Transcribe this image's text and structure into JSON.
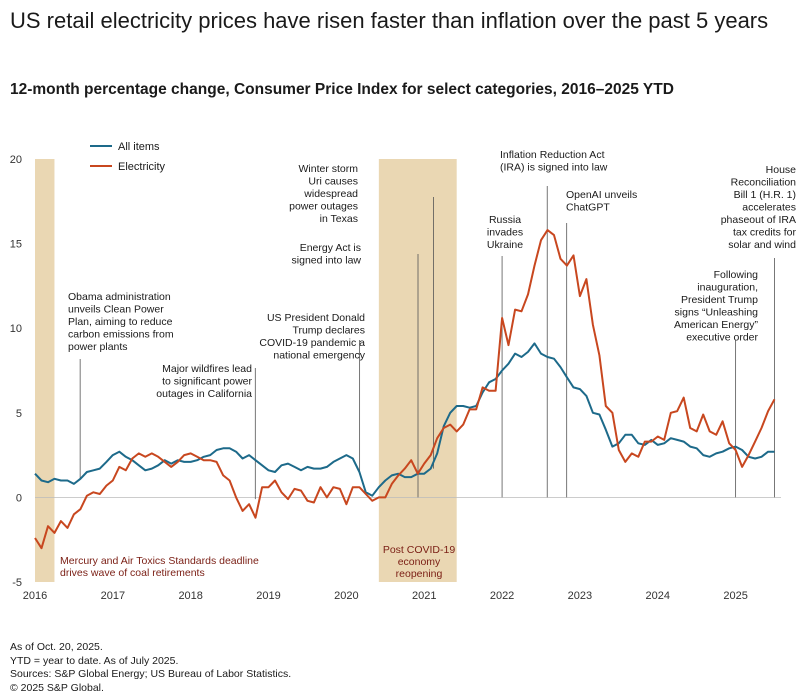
{
  "title": "US retail electricity prices have risen faster than inflation over the past 5 years",
  "subtitle": "12-month percentage change, Consumer Price Index for select categories, 2016–2025 YTD",
  "footer": {
    "line1": "As of Oct. 20, 2025.",
    "line2": "YTD = year to date. As of July 2025.",
    "line3": "Sources: S&P Global Energy; US Bureau of Labor Statistics.",
    "line4": "© 2025 S&P Global."
  },
  "colors": {
    "all_items": "#1d6a8a",
    "electricity": "#c8471f",
    "shade": "#ead7b3",
    "annotation_dark_red": "#7a1e14"
  },
  "chart_data": {
    "type": "line",
    "title": "12-month percentage change, Consumer Price Index for select categories, 2016–2025 YTD",
    "xlabel": "",
    "ylabel": "",
    "xlim": [
      2016.0,
      2025.583
    ],
    "ylim": [
      -5,
      20
    ],
    "yticks": [
      -5,
      0,
      5,
      10,
      15,
      20
    ],
    "xticks": [
      2016,
      2017,
      2018,
      2019,
      2020,
      2021,
      2022,
      2023,
      2024,
      2025
    ],
    "legend": "top-left",
    "series": [
      {
        "name": "All items",
        "x": [
          2016.0,
          2016.083,
          2016.167,
          2016.25,
          2016.333,
          2016.417,
          2016.5,
          2016.583,
          2016.667,
          2016.75,
          2016.833,
          2016.917,
          2017.0,
          2017.083,
          2017.167,
          2017.25,
          2017.333,
          2017.417,
          2017.5,
          2017.583,
          2017.667,
          2017.75,
          2017.833,
          2017.917,
          2018.0,
          2018.083,
          2018.167,
          2018.25,
          2018.333,
          2018.417,
          2018.5,
          2018.583,
          2018.667,
          2018.75,
          2018.833,
          2018.917,
          2019.0,
          2019.083,
          2019.167,
          2019.25,
          2019.333,
          2019.417,
          2019.5,
          2019.583,
          2019.667,
          2019.75,
          2019.833,
          2019.917,
          2020.0,
          2020.083,
          2020.167,
          2020.25,
          2020.333,
          2020.417,
          2020.5,
          2020.583,
          2020.667,
          2020.75,
          2020.833,
          2020.917,
          2021.0,
          2021.083,
          2021.167,
          2021.25,
          2021.333,
          2021.417,
          2021.5,
          2021.583,
          2021.667,
          2021.75,
          2021.833,
          2021.917,
          2022.0,
          2022.083,
          2022.167,
          2022.25,
          2022.333,
          2022.417,
          2022.5,
          2022.583,
          2022.667,
          2022.75,
          2022.833,
          2022.917,
          2023.0,
          2023.083,
          2023.167,
          2023.25,
          2023.333,
          2023.417,
          2023.5,
          2023.583,
          2023.667,
          2023.75,
          2023.833,
          2023.917,
          2024.0,
          2024.083,
          2024.167,
          2024.25,
          2024.333,
          2024.417,
          2024.5,
          2024.583,
          2024.667,
          2024.75,
          2024.833,
          2024.917,
          2025.0,
          2025.083,
          2025.167,
          2025.25,
          2025.333,
          2025.417,
          2025.5
        ],
        "values": [
          1.4,
          1.0,
          0.9,
          1.1,
          1.0,
          1.0,
          0.8,
          1.1,
          1.5,
          1.6,
          1.7,
          2.1,
          2.5,
          2.7,
          2.4,
          2.2,
          1.9,
          1.6,
          1.7,
          1.9,
          2.2,
          2.0,
          2.2,
          2.1,
          2.1,
          2.2,
          2.4,
          2.5,
          2.8,
          2.9,
          2.9,
          2.7,
          2.3,
          2.5,
          2.2,
          1.9,
          1.6,
          1.5,
          1.9,
          2.0,
          1.8,
          1.6,
          1.8,
          1.7,
          1.7,
          1.8,
          2.1,
          2.3,
          2.5,
          2.3,
          1.5,
          0.3,
          0.1,
          0.6,
          1.0,
          1.3,
          1.4,
          1.2,
          1.2,
          1.4,
          1.4,
          1.7,
          2.6,
          4.2,
          5.0,
          5.4,
          5.4,
          5.3,
          5.4,
          6.2,
          6.8,
          7.0,
          7.5,
          7.9,
          8.5,
          8.3,
          8.6,
          9.1,
          8.5,
          8.3,
          8.2,
          7.7,
          7.1,
          6.5,
          6.4,
          6.0,
          5.0,
          4.9,
          4.0,
          3.0,
          3.2,
          3.7,
          3.7,
          3.2,
          3.1,
          3.4,
          3.1,
          3.2,
          3.5,
          3.4,
          3.3,
          3.0,
          2.9,
          2.5,
          2.4,
          2.6,
          2.7,
          2.9,
          3.0,
          2.8,
          2.4,
          2.3,
          2.4,
          2.7,
          2.7
        ]
      },
      {
        "name": "Electricity",
        "x": [
          2016.0,
          2016.083,
          2016.167,
          2016.25,
          2016.333,
          2016.417,
          2016.5,
          2016.583,
          2016.667,
          2016.75,
          2016.833,
          2016.917,
          2017.0,
          2017.083,
          2017.167,
          2017.25,
          2017.333,
          2017.417,
          2017.5,
          2017.583,
          2017.667,
          2017.75,
          2017.833,
          2017.917,
          2018.0,
          2018.083,
          2018.167,
          2018.25,
          2018.333,
          2018.417,
          2018.5,
          2018.583,
          2018.667,
          2018.75,
          2018.833,
          2018.917,
          2019.0,
          2019.083,
          2019.167,
          2019.25,
          2019.333,
          2019.417,
          2019.5,
          2019.583,
          2019.667,
          2019.75,
          2019.833,
          2019.917,
          2020.0,
          2020.083,
          2020.167,
          2020.25,
          2020.333,
          2020.417,
          2020.5,
          2020.583,
          2020.667,
          2020.75,
          2020.833,
          2020.917,
          2021.0,
          2021.083,
          2021.167,
          2021.25,
          2021.333,
          2021.417,
          2021.5,
          2021.583,
          2021.667,
          2021.75,
          2021.833,
          2021.917,
          2022.0,
          2022.083,
          2022.167,
          2022.25,
          2022.333,
          2022.417,
          2022.5,
          2022.583,
          2022.667,
          2022.75,
          2022.833,
          2022.917,
          2023.0,
          2023.083,
          2023.167,
          2023.25,
          2023.333,
          2023.417,
          2023.5,
          2023.583,
          2023.667,
          2023.75,
          2023.833,
          2023.917,
          2024.0,
          2024.083,
          2024.167,
          2024.25,
          2024.333,
          2024.417,
          2024.5,
          2024.583,
          2024.667,
          2024.75,
          2024.833,
          2024.917,
          2025.0,
          2025.083,
          2025.167,
          2025.25,
          2025.333,
          2025.417,
          2025.5
        ],
        "values": [
          -2.4,
          -3.0,
          -1.7,
          -2.1,
          -1.4,
          -1.8,
          -1.0,
          -0.7,
          0.1,
          0.3,
          0.2,
          0.7,
          1.0,
          1.8,
          1.6,
          2.3,
          2.6,
          2.4,
          2.6,
          2.4,
          2.1,
          1.8,
          2.1,
          2.5,
          2.6,
          2.4,
          2.2,
          2.2,
          2.1,
          1.3,
          1.0,
          0.0,
          -0.8,
          -0.4,
          -1.2,
          0.6,
          0.6,
          1.0,
          0.3,
          -0.1,
          0.5,
          0.4,
          -0.2,
          -0.3,
          0.6,
          0.0,
          0.6,
          0.5,
          -0.4,
          0.6,
          0.6,
          0.2,
          -0.2,
          0.0,
          0.0,
          0.8,
          1.3,
          1.7,
          2.2,
          1.4,
          2.0,
          2.5,
          3.5,
          4.1,
          4.3,
          3.9,
          4.3,
          5.2,
          5.2,
          6.5,
          6.3,
          6.3,
          10.6,
          9.0,
          11.1,
          11.0,
          12.0,
          13.7,
          15.2,
          15.8,
          15.5,
          14.1,
          13.7,
          14.3,
          11.9,
          12.9,
          10.2,
          8.4,
          5.4,
          5.0,
          2.8,
          2.1,
          2.6,
          2.4,
          3.3,
          3.3,
          3.6,
          3.4,
          5.0,
          5.1,
          5.9,
          4.1,
          3.9,
          4.9,
          3.9,
          3.7,
          4.5,
          3.2,
          2.8,
          1.8,
          2.5,
          3.3,
          4.1,
          5.1,
          5.8
        ]
      }
    ],
    "shaded_periods": [
      {
        "start": 2016.0,
        "end": 2016.25,
        "label": "Mercury and Air Toxics Standards deadline drives wave of coal retirements"
      },
      {
        "start": 2020.417,
        "end": 2021.417,
        "label": "Post COVID-19 economy reopening"
      }
    ],
    "annotations": [
      {
        "x": 2016.58,
        "y_end": 1.1,
        "text": [
          "Obama administration",
          "unveils Clean Power",
          "Plan, aiming to reduce",
          "carbon emissions from",
          "power plants"
        ]
      },
      {
        "x": 2018.83,
        "y_end": -0.1,
        "text": [
          "Major wildfires lead",
          "to significant power",
          "outages in California"
        ]
      },
      {
        "x": 2020.17,
        "y_end": 1.4,
        "text": [
          "US President Donald",
          "Trump declares",
          "COVID-19 pandemic a",
          "national emergency"
        ]
      },
      {
        "x": 2021.12,
        "y_end": 1.7,
        "text": [
          "Winter storm",
          "Uri causes",
          "widespread",
          "power outages",
          "in Texas"
        ]
      },
      {
        "x": 2020.92,
        "y_end": 0.0,
        "text": [
          "Energy Act is",
          "signed into law"
        ]
      },
      {
        "x": 2022.0,
        "y_end": 0.0,
        "text": [
          "Russia",
          "invades",
          "Ukraine"
        ]
      },
      {
        "x": 2022.58,
        "y_end": 0.0,
        "text": [
          "Inflation Reduction Act",
          "(IRA) is signed into law"
        ]
      },
      {
        "x": 2022.83,
        "y_end": 0.0,
        "text": [
          "OpenAI unveils",
          "ChatGPT"
        ]
      },
      {
        "x": 2025.0,
        "y_end": 0.0,
        "text": [
          "Following",
          "inauguration,",
          "President Trump",
          "signs “Unleashing",
          "American Energy”",
          "executive order"
        ]
      },
      {
        "x": 2025.5,
        "y_end": 0.0,
        "text": [
          "House",
          "Reconciliation",
          "Bill 1 (H.R. 1)",
          "accelerates",
          "phaseout of IRA",
          "tax credits for",
          "solar and wind"
        ]
      }
    ]
  }
}
